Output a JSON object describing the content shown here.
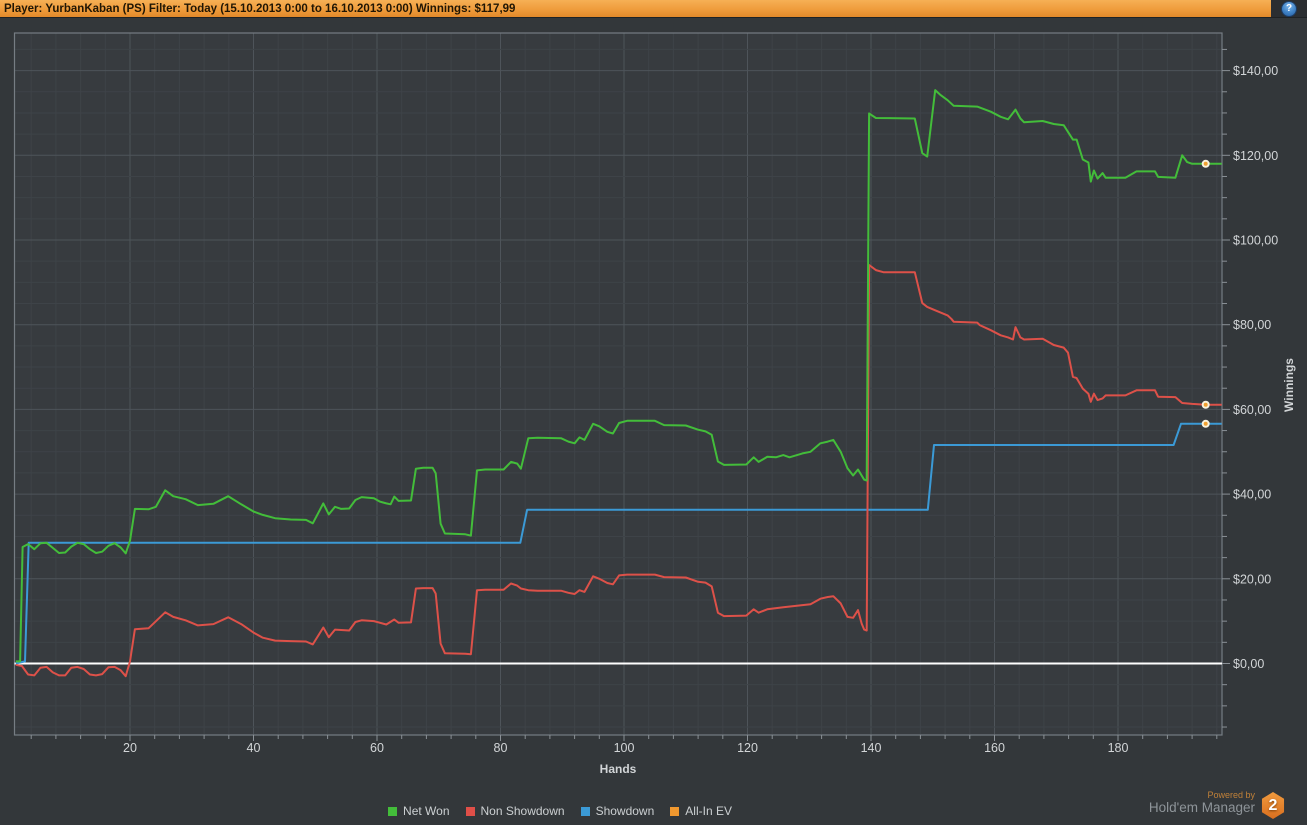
{
  "title_bar": {
    "text": "Player: YurbanKaban (PS) Filter: Today (15.10.2013 0:00 to 16.10.2013 0:00) Winnings: $117,99",
    "help_glyph": "?"
  },
  "chart_data": {
    "type": "line",
    "xlabel": "Hands",
    "ylabel": "Winnings",
    "xlim": [
      0,
      197
    ],
    "ylim": [
      -17,
      149
    ],
    "x_tick_values": [
      20,
      40,
      60,
      80,
      100,
      120,
      140,
      160,
      180
    ],
    "y_tick_values": [
      0,
      20,
      40,
      60,
      80,
      100,
      120,
      140
    ],
    "y_tick_labels": [
      "$0,00",
      "$20,00",
      "$40,00",
      "$60,00",
      "$80,00",
      "$100,00",
      "$120,00",
      "$140,00"
    ],
    "grid": {
      "minor_x_step": 4,
      "minor_y_step": 5,
      "major_x_step": 20,
      "major_y_step": 20
    },
    "legend_position": "bottom-center",
    "zero_line_value": 0,
    "final_winnings_label": "$117,99",
    "series": [
      {
        "name": "Showdown",
        "color": "#3b9ad6",
        "end_value": 56.6,
        "points": [
          [
            1.5,
            0
          ],
          [
            3.0,
            0.5
          ],
          [
            3.6,
            28.5
          ],
          [
            83.2,
            28.5
          ],
          [
            84.3,
            36.3
          ],
          [
            149.2,
            36.3
          ],
          [
            150.2,
            51.6
          ],
          [
            189.0,
            51.6
          ],
          [
            190.2,
            56.6
          ],
          [
            196.8,
            56.6
          ]
        ]
      },
      {
        "name": "Non Showdown",
        "color": "#dd5149",
        "end_value": 61.1,
        "points": [
          [
            1.5,
            -0.3
          ],
          [
            2.5,
            -0.6
          ],
          [
            3.5,
            -2.6
          ],
          [
            4.5,
            -2.8
          ],
          [
            5.5,
            -1.0
          ],
          [
            6.5,
            -0.8
          ],
          [
            7.5,
            -2.1
          ],
          [
            8.5,
            -2.8
          ],
          [
            9.5,
            -2.8
          ],
          [
            10.5,
            -1.0
          ],
          [
            11.5,
            -0.8
          ],
          [
            12.5,
            -1.3
          ],
          [
            13.5,
            -2.6
          ],
          [
            14.5,
            -2.8
          ],
          [
            15.5,
            -2.5
          ],
          [
            16.5,
            -0.9
          ],
          [
            17.5,
            -0.8
          ],
          [
            18.5,
            -1.6
          ],
          [
            19.3,
            -3.0
          ],
          [
            20.0,
            0.5
          ],
          [
            20.8,
            8.1
          ],
          [
            23.0,
            8.3
          ],
          [
            25.7,
            12.1
          ],
          [
            27.0,
            11.0
          ],
          [
            29.0,
            10.2
          ],
          [
            31.0,
            9.0
          ],
          [
            33.5,
            9.3
          ],
          [
            35.9,
            10.9
          ],
          [
            38.0,
            9.3
          ],
          [
            40.0,
            7.3
          ],
          [
            41.5,
            6.1
          ],
          [
            43.5,
            5.4
          ],
          [
            46.0,
            5.3
          ],
          [
            48.5,
            5.2
          ],
          [
            49.6,
            4.5
          ],
          [
            51.3,
            8.5
          ],
          [
            52.2,
            6.2
          ],
          [
            53.2,
            8.0
          ],
          [
            55.5,
            7.8
          ],
          [
            56.5,
            9.8
          ],
          [
            57.5,
            10.2
          ],
          [
            59.5,
            10.0
          ],
          [
            60.5,
            9.6
          ],
          [
            61.5,
            9.2
          ],
          [
            62.8,
            10.4
          ],
          [
            63.5,
            9.6
          ],
          [
            65.5,
            9.7
          ],
          [
            66.3,
            17.7
          ],
          [
            67.5,
            17.8
          ],
          [
            69.0,
            17.8
          ],
          [
            69.5,
            16.5
          ],
          [
            70.3,
            4.7
          ],
          [
            71.0,
            2.4
          ],
          [
            74.3,
            2.3
          ],
          [
            75.2,
            2.2
          ],
          [
            76.2,
            17.3
          ],
          [
            77.5,
            17.4
          ],
          [
            80.5,
            17.4
          ],
          [
            81.7,
            18.9
          ],
          [
            82.7,
            18.4
          ],
          [
            83.3,
            17.7
          ],
          [
            84.5,
            17.3
          ],
          [
            86.0,
            17.2
          ],
          [
            89.8,
            17.2
          ],
          [
            91.0,
            16.7
          ],
          [
            92.0,
            16.4
          ],
          [
            92.8,
            17.3
          ],
          [
            93.6,
            16.9
          ],
          [
            95.0,
            20.6
          ],
          [
            96.0,
            20.0
          ],
          [
            97.3,
            19.0
          ],
          [
            98.2,
            18.7
          ],
          [
            99.2,
            20.8
          ],
          [
            100.5,
            21.0
          ],
          [
            105.0,
            21.0
          ],
          [
            106.5,
            20.4
          ],
          [
            110.0,
            20.3
          ],
          [
            112.0,
            19.3
          ],
          [
            113.2,
            19.1
          ],
          [
            114.2,
            18.2
          ],
          [
            115.2,
            12.0
          ],
          [
            116.2,
            11.2
          ],
          [
            119.8,
            11.3
          ],
          [
            121.0,
            12.8
          ],
          [
            121.8,
            12.0
          ],
          [
            123.2,
            12.8
          ],
          [
            125.8,
            13.3
          ],
          [
            128.9,
            13.8
          ],
          [
            130.2,
            14.0
          ],
          [
            131.8,
            15.3
          ],
          [
            133.0,
            15.7
          ],
          [
            133.9,
            15.9
          ],
          [
            135.1,
            14.2
          ],
          [
            136.2,
            11.0
          ],
          [
            137.1,
            10.8
          ],
          [
            137.9,
            12.6
          ],
          [
            138.5,
            9.4
          ],
          [
            138.9,
            8.0
          ],
          [
            139.3,
            7.8
          ],
          [
            139.7,
            94.1
          ],
          [
            140.8,
            92.9
          ],
          [
            142.0,
            92.4
          ],
          [
            147.1,
            92.4
          ],
          [
            148.3,
            85.1
          ],
          [
            149.1,
            84.2
          ],
          [
            150.4,
            83.4
          ],
          [
            152.4,
            82.2
          ],
          [
            153.0,
            81.4
          ],
          [
            153.4,
            80.7
          ],
          [
            157.2,
            80.5
          ],
          [
            157.6,
            79.9
          ],
          [
            159.4,
            78.7
          ],
          [
            161.0,
            77.5
          ],
          [
            162.2,
            77.0
          ],
          [
            163.0,
            76.5
          ],
          [
            163.4,
            79.4
          ],
          [
            164.2,
            77.0
          ],
          [
            164.8,
            76.5
          ],
          [
            167.8,
            76.7
          ],
          [
            169.6,
            75.2
          ],
          [
            171.2,
            74.6
          ],
          [
            171.9,
            73.4
          ],
          [
            172.7,
            67.7
          ],
          [
            173.3,
            67.4
          ],
          [
            174.3,
            64.9
          ],
          [
            175.2,
            63.7
          ],
          [
            175.6,
            61.8
          ],
          [
            176.1,
            63.7
          ],
          [
            176.7,
            62.2
          ],
          [
            177.5,
            62.6
          ],
          [
            178.0,
            63.3
          ],
          [
            181.2,
            63.3
          ],
          [
            183.0,
            64.5
          ],
          [
            186.0,
            64.5
          ],
          [
            186.5,
            63.0
          ],
          [
            189.3,
            62.9
          ],
          [
            190.4,
            61.5
          ],
          [
            192.0,
            61.3
          ],
          [
            194.2,
            61.1
          ],
          [
            196.8,
            61.1
          ]
        ]
      },
      {
        "name": "Net Won",
        "color": "#43bd3a",
        "end_value": 117.99,
        "points": [
          [
            1.5,
            0.5
          ],
          [
            2.2,
            0.5
          ],
          [
            2.6,
            27.5
          ],
          [
            3.5,
            28.2
          ],
          [
            4.5,
            27.0
          ],
          [
            5.5,
            28.4
          ],
          [
            6.5,
            28.5
          ],
          [
            7.5,
            27.3
          ],
          [
            8.5,
            26.1
          ],
          [
            9.5,
            26.2
          ],
          [
            10.5,
            27.6
          ],
          [
            11.5,
            28.5
          ],
          [
            12.5,
            28.2
          ],
          [
            13.5,
            27.0
          ],
          [
            14.5,
            26.1
          ],
          [
            15.5,
            26.4
          ],
          [
            16.5,
            27.8
          ],
          [
            17.5,
            28.4
          ],
          [
            18.5,
            27.4
          ],
          [
            19.3,
            26.0
          ],
          [
            20.0,
            29.0
          ],
          [
            20.8,
            36.5
          ],
          [
            23.0,
            36.4
          ],
          [
            24.2,
            37.0
          ],
          [
            25.7,
            40.9
          ],
          [
            27.0,
            39.5
          ],
          [
            29.0,
            38.8
          ],
          [
            31.0,
            37.4
          ],
          [
            33.5,
            37.7
          ],
          [
            35.9,
            39.5
          ],
          [
            38.0,
            37.6
          ],
          [
            40.0,
            35.9
          ],
          [
            41.5,
            35.1
          ],
          [
            43.5,
            34.3
          ],
          [
            46.0,
            34.0
          ],
          [
            48.5,
            33.9
          ],
          [
            49.6,
            33.1
          ],
          [
            51.3,
            37.8
          ],
          [
            52.2,
            35.2
          ],
          [
            53.2,
            37.0
          ],
          [
            54.2,
            36.5
          ],
          [
            55.5,
            36.6
          ],
          [
            56.5,
            38.6
          ],
          [
            57.5,
            39.3
          ],
          [
            59.5,
            39.0
          ],
          [
            60.5,
            38.2
          ],
          [
            61.5,
            37.8
          ],
          [
            62.2,
            37.6
          ],
          [
            62.8,
            39.4
          ],
          [
            63.5,
            38.4
          ],
          [
            65.5,
            38.5
          ],
          [
            66.3,
            46.0
          ],
          [
            67.5,
            46.2
          ],
          [
            69.0,
            46.2
          ],
          [
            69.5,
            44.9
          ],
          [
            70.3,
            33.0
          ],
          [
            71.0,
            30.7
          ],
          [
            74.3,
            30.5
          ],
          [
            75.2,
            30.2
          ],
          [
            76.2,
            45.6
          ],
          [
            77.5,
            45.8
          ],
          [
            80.5,
            45.8
          ],
          [
            81.7,
            47.6
          ],
          [
            82.7,
            47.2
          ],
          [
            83.3,
            46.0
          ],
          [
            84.5,
            53.2
          ],
          [
            86.0,
            53.3
          ],
          [
            89.8,
            53.2
          ],
          [
            91.0,
            52.4
          ],
          [
            92.0,
            52.0
          ],
          [
            92.8,
            53.4
          ],
          [
            93.6,
            52.8
          ],
          [
            95.0,
            56.6
          ],
          [
            96.0,
            56.0
          ],
          [
            97.3,
            54.7
          ],
          [
            98.2,
            54.3
          ],
          [
            99.2,
            56.8
          ],
          [
            100.5,
            57.3
          ],
          [
            105.0,
            57.3
          ],
          [
            106.5,
            56.3
          ],
          [
            110.0,
            56.2
          ],
          [
            112.0,
            55.2
          ],
          [
            113.2,
            54.8
          ],
          [
            114.2,
            54.0
          ],
          [
            115.2,
            47.7
          ],
          [
            116.2,
            46.9
          ],
          [
            119.8,
            47.0
          ],
          [
            121.0,
            48.7
          ],
          [
            121.8,
            47.6
          ],
          [
            123.2,
            48.8
          ],
          [
            124.6,
            48.7
          ],
          [
            125.8,
            49.2
          ],
          [
            126.8,
            48.7
          ],
          [
            128.9,
            49.6
          ],
          [
            130.2,
            50.0
          ],
          [
            131.8,
            52.0
          ],
          [
            133.0,
            52.4
          ],
          [
            133.9,
            52.8
          ],
          [
            135.1,
            50.0
          ],
          [
            136.2,
            46.1
          ],
          [
            137.1,
            44.4
          ],
          [
            137.9,
            45.8
          ],
          [
            138.9,
            43.4
          ],
          [
            139.3,
            43.2
          ],
          [
            139.7,
            129.9
          ],
          [
            140.8,
            128.8
          ],
          [
            147.1,
            128.7
          ],
          [
            148.3,
            120.5
          ],
          [
            149.1,
            119.7
          ],
          [
            150.4,
            135.4
          ],
          [
            151.3,
            134.2
          ],
          [
            152.4,
            133.0
          ],
          [
            153.4,
            131.7
          ],
          [
            157.2,
            131.5
          ],
          [
            159.4,
            130.3
          ],
          [
            161.0,
            129.1
          ],
          [
            162.2,
            128.5
          ],
          [
            163.4,
            130.8
          ],
          [
            164.2,
            128.7
          ],
          [
            164.8,
            127.8
          ],
          [
            167.8,
            128.1
          ],
          [
            169.6,
            127.4
          ],
          [
            171.2,
            127.1
          ],
          [
            172.7,
            123.7
          ],
          [
            173.3,
            123.7
          ],
          [
            174.3,
            119.0
          ],
          [
            175.2,
            118.3
          ],
          [
            175.6,
            113.8
          ],
          [
            176.1,
            116.4
          ],
          [
            176.7,
            114.5
          ],
          [
            177.5,
            115.8
          ],
          [
            178.0,
            114.7
          ],
          [
            181.2,
            114.7
          ],
          [
            183.0,
            116.2
          ],
          [
            186.0,
            116.2
          ],
          [
            186.5,
            114.9
          ],
          [
            189.3,
            114.7
          ],
          [
            190.4,
            120.0
          ],
          [
            191.2,
            118.4
          ],
          [
            192.0,
            118.0
          ],
          [
            194.2,
            118.0
          ],
          [
            196.8,
            118.0
          ]
        ]
      },
      {
        "name": "All-In EV",
        "color": "#f0982f",
        "note": "not visible as separate line (coincides with Net Won)",
        "points": []
      }
    ],
    "end_marker_hand": 194.2,
    "colors": {
      "plot_bg": "#373b3f",
      "outer_bg": "#33373a",
      "grid_minor": "#3e4348",
      "grid_major": "#4e545a",
      "plot_border": "#767d83",
      "tick": "#8a9096",
      "tick_label": "#d2d5d7",
      "zero_line": "#ffffff",
      "marker_ring": "#f8f2de",
      "marker_center": "#f0a030"
    }
  },
  "legend": {
    "items": [
      {
        "label": "Net Won",
        "color": "#43bd3a"
      },
      {
        "label": "Non Showdown",
        "color": "#e04f48"
      },
      {
        "label": "Showdown",
        "color": "#3b9ad6"
      },
      {
        "label": "All-In EV",
        "color": "#f0982f"
      }
    ]
  },
  "footer": {
    "powered_by": "Powered by",
    "app_name": "Hold'em Manager",
    "badge": "2"
  }
}
